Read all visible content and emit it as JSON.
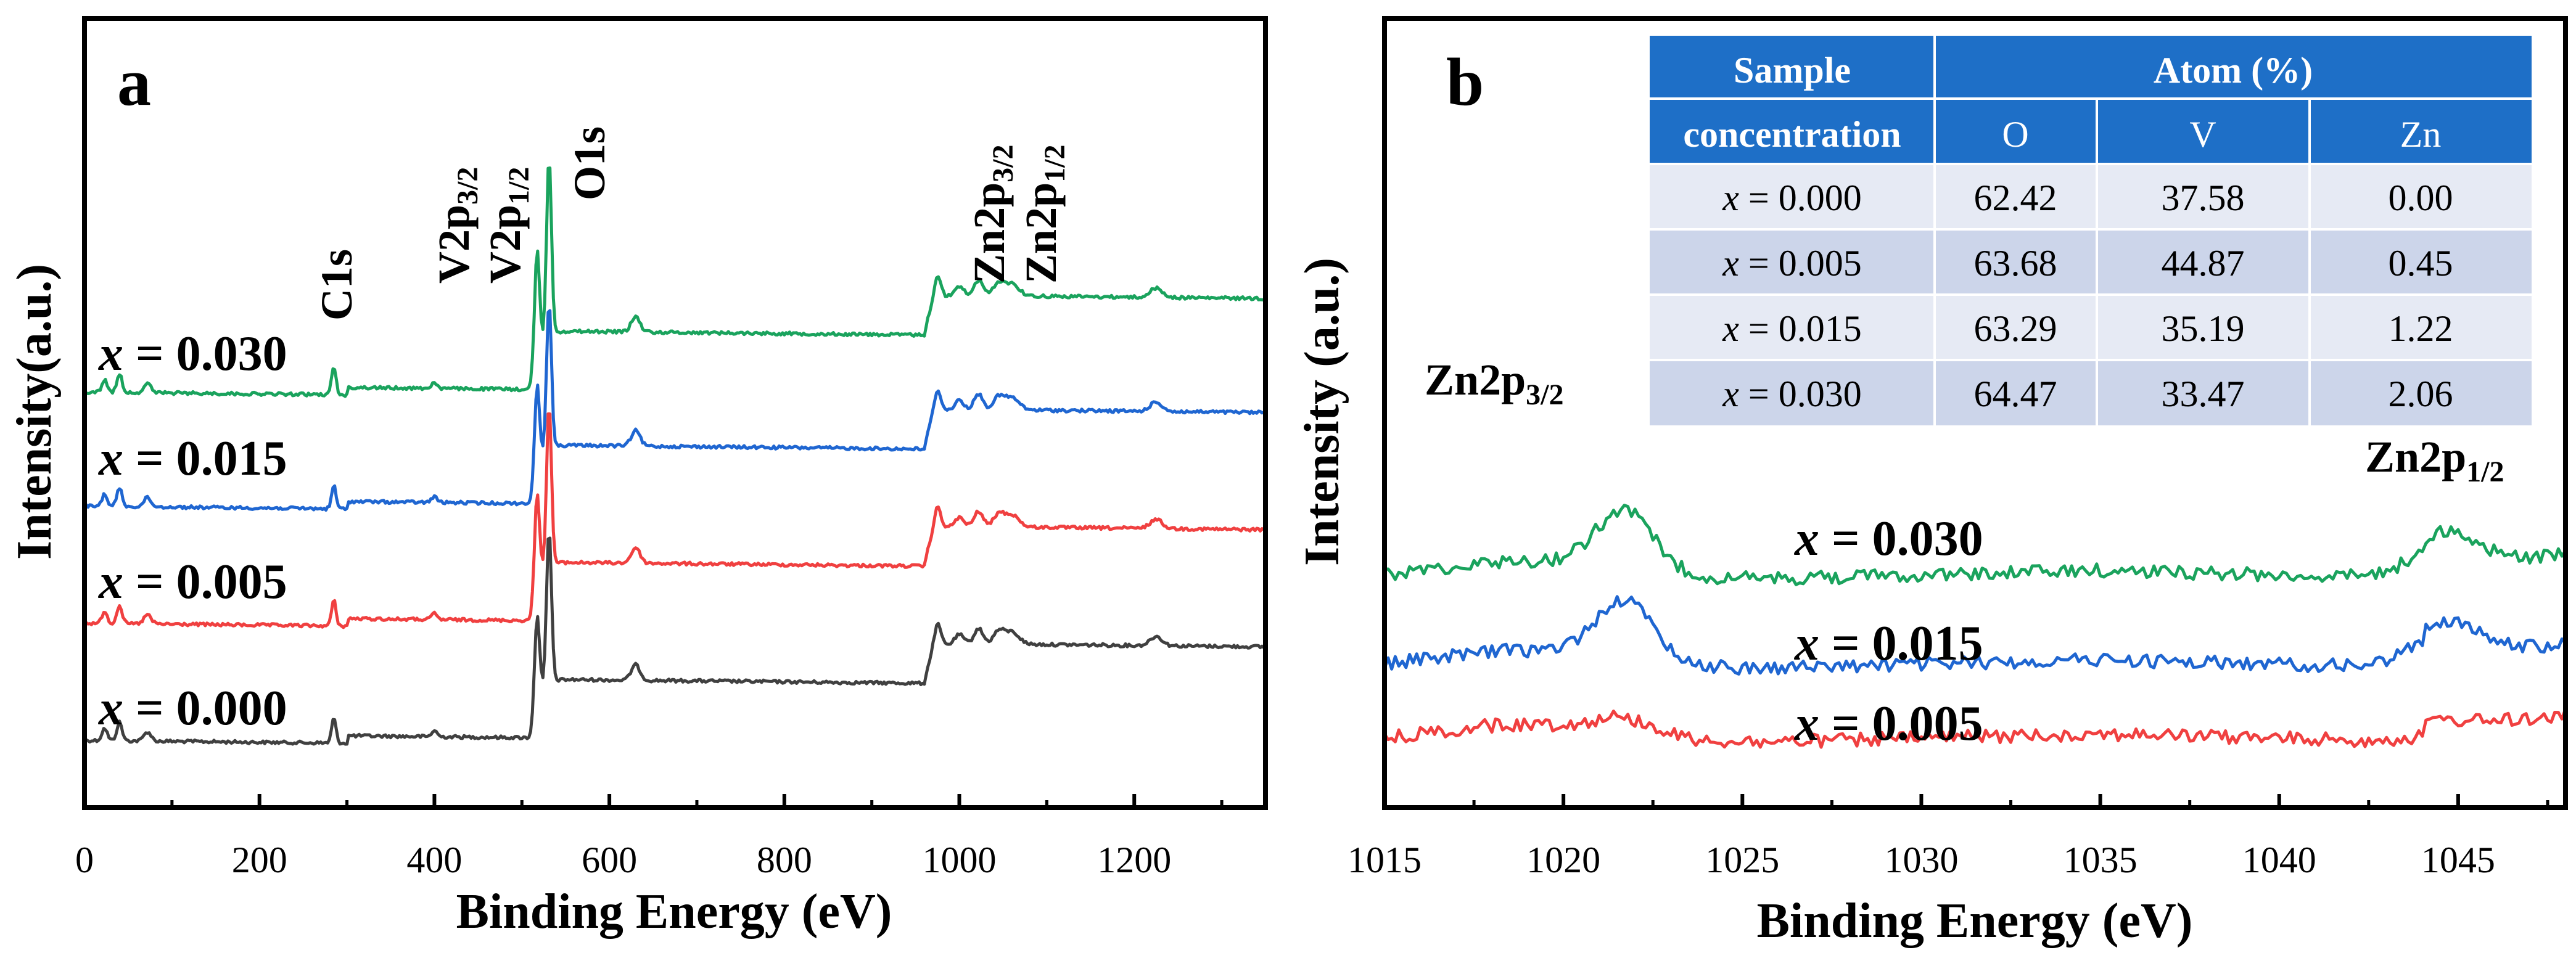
{
  "chart_data": [
    {
      "panel_label": "a",
      "type": "line",
      "xlabel": "Binding Energy (eV)",
      "ylabel": "Intensity(a.u.)",
      "xlim": [
        0,
        1350
      ],
      "xticks": [
        "0",
        "200",
        "400",
        "600",
        "800",
        "1000",
        "1200"
      ],
      "peak_labels": [
        {
          "id": "c1s",
          "main": "C1s",
          "sub": "",
          "x": 285
        },
        {
          "id": "v32",
          "main": "V2p",
          "sub": "3/2",
          "x": 517
        },
        {
          "id": "v12",
          "main": "V2p",
          "sub": "1/2",
          "x": 524
        },
        {
          "id": "o1s",
          "main": "O1s",
          "sub": "",
          "x": 531
        },
        {
          "id": "zn32",
          "main": "Zn2p",
          "sub": "3/2",
          "x": 1022
        },
        {
          "id": "zn12",
          "main": "Zn2p",
          "sub": "1/2",
          "x": 1045
        }
      ],
      "series": [
        {
          "name": "x = 0.000",
          "prefix": "x",
          "rest": " = 0.000",
          "color": "#404040",
          "offset": 0
        },
        {
          "name": "x = 0.005",
          "prefix": "x",
          "rest": " = 0.005",
          "color": "#f04040",
          "offset": 1
        },
        {
          "name": "x = 0.015",
          "prefix": "x",
          "rest": " = 0.015",
          "color": "#1f66d1",
          "offset": 2
        },
        {
          "name": "x = 0.030",
          "prefix": "x",
          "rest": " = 0.030",
          "color": "#1aa35d",
          "offset": 3
        }
      ]
    },
    {
      "panel_label": "b",
      "type": "line",
      "xlabel": "Binding Energy (eV)",
      "ylabel": "Intensity (a.u.)",
      "xlim": [
        1015,
        1048
      ],
      "xticks": [
        "1015",
        "1020",
        "1025",
        "1030",
        "1035",
        "1040",
        "1045"
      ],
      "peak_labels": [
        {
          "id": "zn32b",
          "main": "Zn2p",
          "sub": "3/2"
        },
        {
          "id": "zn12b",
          "main": "Zn2p",
          "sub": "1/2"
        }
      ],
      "series": [
        {
          "name": "x = 0.005",
          "prefix": "x",
          "rest": " = 0.005",
          "color": "#f04040",
          "offset": 0
        },
        {
          "name": "x = 0.015",
          "prefix": "x",
          "rest": " = 0.015",
          "color": "#1f66d1",
          "offset": 1
        },
        {
          "name": "x = 0.030",
          "prefix": "x",
          "rest": " = 0.030",
          "color": "#1aa35d",
          "offset": 2
        }
      ]
    }
  ],
  "table": {
    "header": {
      "sample": "Sample",
      "concentration": "concentration",
      "atom": "Atom (%)",
      "cols": [
        "O",
        "V",
        "Zn"
      ]
    },
    "rows": [
      {
        "sample": "x = 0.000",
        "prefix": "x",
        "rest": " = 0.000",
        "values": [
          "62.42",
          "37.58",
          "0.00"
        ]
      },
      {
        "sample": "x = 0.005",
        "prefix": "x",
        "rest": " = 0.005",
        "values": [
          "63.68",
          "44.87",
          "0.45"
        ]
      },
      {
        "sample": "x = 0.015",
        "prefix": "x",
        "rest": " = 0.015",
        "values": [
          "63.29",
          "35.19",
          "1.22"
        ]
      },
      {
        "sample": "x = 0.030",
        "prefix": "x",
        "rest": " = 0.030",
        "values": [
          "64.47",
          "33.47",
          "2.06"
        ]
      }
    ],
    "colors": {
      "header": "#1e6fc7",
      "row_light": "#e6eaf4",
      "row_dark": "#ccd5ea"
    }
  }
}
